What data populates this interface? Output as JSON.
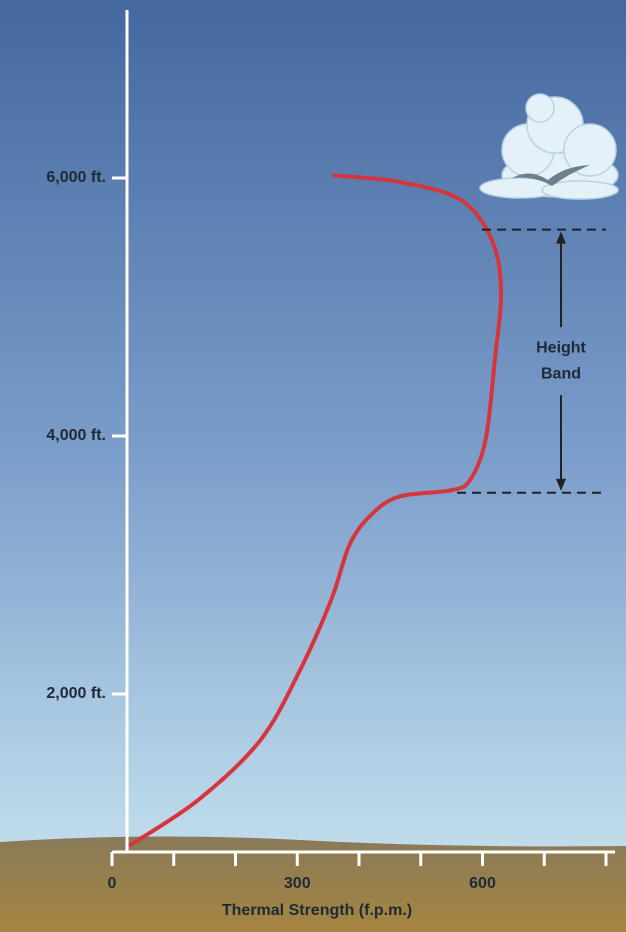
{
  "chart_data": {
    "type": "line",
    "xlabel": "Thermal Strength (f.p.m.)",
    "xlim": [
      0,
      800
    ],
    "ylim": [
      775,
      7380
    ],
    "xticks": [
      0,
      300,
      600
    ],
    "minor_xticks": [
      100,
      200,
      400,
      500,
      700,
      800
    ],
    "yticks": [
      {
        "value": 2000,
        "label": "2,000 ft."
      },
      {
        "value": 4000,
        "label": "4,000 ft."
      },
      {
        "value": 6000,
        "label": "6,000 ft."
      }
    ],
    "series": [
      {
        "color": "#d7353d",
        "x": [
          30,
          140,
          240,
          305,
          355,
          385,
          420,
          465,
          550,
          580,
          605,
          620,
          630,
          615,
          565,
          465,
          360
        ],
        "values": [
          830,
          1180,
          1640,
          2190,
          2730,
          3160,
          3390,
          3530,
          3580,
          3660,
          3970,
          4590,
          5130,
          5520,
          5830,
          5970,
          6020
        ]
      }
    ],
    "height_band": {
      "label_lines": [
        "Height",
        "Band"
      ],
      "from": 3560,
      "to": 5600
    }
  }
}
